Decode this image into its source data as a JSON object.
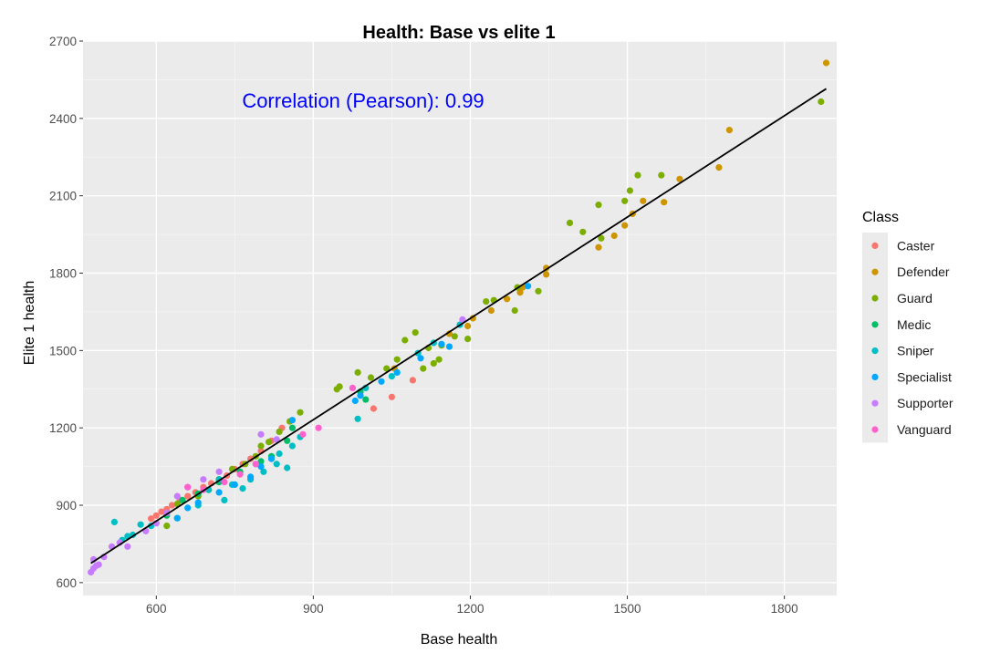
{
  "chart_data": {
    "type": "scatter",
    "title": "Health: Base vs elite 1",
    "xlabel": "Base health",
    "ylabel": "Elite 1 health",
    "xlim": [
      460,
      1900
    ],
    "ylim": [
      550,
      2700
    ],
    "xticks": [
      600,
      900,
      1200,
      1500,
      1800
    ],
    "yticks": [
      600,
      900,
      1200,
      1500,
      1800,
      2100,
      2400,
      2700
    ],
    "grid": true,
    "legend_position": "right",
    "legend_title": "Class",
    "annotation": "Correlation (Pearson): 0.99",
    "annotation_color": "#0000FF",
    "fit_line": {
      "x": [
        475,
        1880
      ],
      "y": [
        675,
        2515
      ],
      "color": "#000000"
    },
    "series": [
      {
        "name": "Caster",
        "color": "#F8766D",
        "points": [
          [
            590,
            848
          ],
          [
            600,
            860
          ],
          [
            610,
            875
          ],
          [
            620,
            885
          ],
          [
            630,
            900
          ],
          [
            645,
            920
          ],
          [
            660,
            935
          ],
          [
            675,
            950
          ],
          [
            690,
            970
          ],
          [
            705,
            985
          ],
          [
            720,
            1000
          ],
          [
            735,
            1015
          ],
          [
            750,
            1040
          ],
          [
            765,
            1060
          ],
          [
            780,
            1080
          ],
          [
            800,
            1110
          ],
          [
            820,
            1150
          ],
          [
            840,
            1200
          ],
          [
            1015,
            1275
          ],
          [
            1050,
            1320
          ],
          [
            1090,
            1385
          ]
        ]
      },
      {
        "name": "Defender",
        "color": "#CD9600",
        "points": [
          [
            1055,
            1430
          ],
          [
            1160,
            1565
          ],
          [
            1195,
            1595
          ],
          [
            1205,
            1625
          ],
          [
            1240,
            1655
          ],
          [
            1270,
            1700
          ],
          [
            1295,
            1725
          ],
          [
            1300,
            1745
          ],
          [
            1345,
            1795
          ],
          [
            1345,
            1820
          ],
          [
            1445,
            1900
          ],
          [
            1475,
            1945
          ],
          [
            1495,
            1985
          ],
          [
            1510,
            2030
          ],
          [
            1530,
            2080
          ],
          [
            1570,
            2075
          ],
          [
            1600,
            2165
          ],
          [
            1675,
            2210
          ],
          [
            1695,
            2355
          ],
          [
            1880,
            2615
          ]
        ]
      },
      {
        "name": "Guard",
        "color": "#7CAE00",
        "points": [
          [
            620,
            820
          ],
          [
            640,
            905
          ],
          [
            680,
            935
          ],
          [
            700,
            960
          ],
          [
            720,
            1000
          ],
          [
            745,
            1040
          ],
          [
            770,
            1060
          ],
          [
            790,
            1090
          ],
          [
            800,
            1130
          ],
          [
            815,
            1145
          ],
          [
            835,
            1185
          ],
          [
            855,
            1225
          ],
          [
            875,
            1260
          ],
          [
            945,
            1350
          ],
          [
            950,
            1360
          ],
          [
            985,
            1415
          ],
          [
            1010,
            1395
          ],
          [
            1040,
            1430
          ],
          [
            1060,
            1465
          ],
          [
            1075,
            1540
          ],
          [
            1095,
            1570
          ],
          [
            1110,
            1430
          ],
          [
            1120,
            1510
          ],
          [
            1130,
            1450
          ],
          [
            1140,
            1465
          ],
          [
            1145,
            1520
          ],
          [
            1170,
            1555
          ],
          [
            1195,
            1545
          ],
          [
            1230,
            1690
          ],
          [
            1245,
            1695
          ],
          [
            1285,
            1655
          ],
          [
            1290,
            1745
          ],
          [
            1330,
            1730
          ],
          [
            1390,
            1995
          ],
          [
            1415,
            1960
          ],
          [
            1445,
            2065
          ],
          [
            1450,
            1935
          ],
          [
            1495,
            2080
          ],
          [
            1505,
            2120
          ],
          [
            1520,
            2180
          ],
          [
            1565,
            2180
          ],
          [
            1870,
            2465
          ]
        ]
      },
      {
        "name": "Medic",
        "color": "#00BE67",
        "points": [
          [
            620,
            860
          ],
          [
            650,
            920
          ],
          [
            680,
            945
          ],
          [
            720,
            990
          ],
          [
            760,
            1030
          ],
          [
            800,
            1070
          ],
          [
            820,
            1090
          ],
          [
            850,
            1150
          ],
          [
            860,
            1200
          ],
          [
            990,
            1340
          ],
          [
            1000,
            1310
          ]
        ]
      },
      {
        "name": "Sniper",
        "color": "#00BFC4",
        "points": [
          [
            520,
            835
          ],
          [
            535,
            765
          ],
          [
            545,
            780
          ],
          [
            555,
            785
          ],
          [
            570,
            825
          ],
          [
            590,
            820
          ],
          [
            640,
            850
          ],
          [
            680,
            900
          ],
          [
            700,
            960
          ],
          [
            720,
            1000
          ],
          [
            730,
            920
          ],
          [
            745,
            980
          ],
          [
            765,
            965
          ],
          [
            780,
            1000
          ],
          [
            790,
            1060
          ],
          [
            805,
            1030
          ],
          [
            830,
            1060
          ],
          [
            835,
            1100
          ],
          [
            850,
            1045
          ],
          [
            860,
            1130
          ],
          [
            875,
            1165
          ],
          [
            985,
            1235
          ],
          [
            1000,
            1355
          ],
          [
            1050,
            1400
          ],
          [
            1100,
            1490
          ],
          [
            1130,
            1530
          ],
          [
            1180,
            1600
          ]
        ]
      },
      {
        "name": "Specialist",
        "color": "#00A9FF",
        "points": [
          [
            640,
            850
          ],
          [
            660,
            890
          ],
          [
            680,
            910
          ],
          [
            720,
            950
          ],
          [
            750,
            980
          ],
          [
            780,
            1010
          ],
          [
            800,
            1050
          ],
          [
            820,
            1080
          ],
          [
            860,
            1230
          ],
          [
            980,
            1305
          ],
          [
            990,
            1325
          ],
          [
            1030,
            1380
          ],
          [
            1060,
            1415
          ],
          [
            1105,
            1470
          ],
          [
            1145,
            1525
          ],
          [
            1160,
            1515
          ],
          [
            1310,
            1750
          ]
        ]
      },
      {
        "name": "Supporter",
        "color": "#C77CFF",
        "points": [
          [
            475,
            640
          ],
          [
            480,
            655
          ],
          [
            485,
            665
          ],
          [
            490,
            670
          ],
          [
            480,
            690
          ],
          [
            500,
            700
          ],
          [
            515,
            740
          ],
          [
            530,
            755
          ],
          [
            545,
            740
          ],
          [
            580,
            800
          ],
          [
            600,
            830
          ],
          [
            620,
            870
          ],
          [
            640,
            935
          ],
          [
            660,
            970
          ],
          [
            690,
            1000
          ],
          [
            720,
            1030
          ],
          [
            800,
            1175
          ],
          [
            830,
            1155
          ],
          [
            1185,
            1620
          ]
        ]
      },
      {
        "name": "Vanguard",
        "color": "#FF61CC",
        "points": [
          [
            660,
            970
          ],
          [
            690,
            960
          ],
          [
            730,
            990
          ],
          [
            760,
            1020
          ],
          [
            790,
            1060
          ],
          [
            880,
            1175
          ],
          [
            910,
            1200
          ],
          [
            975,
            1355
          ]
        ]
      }
    ]
  }
}
